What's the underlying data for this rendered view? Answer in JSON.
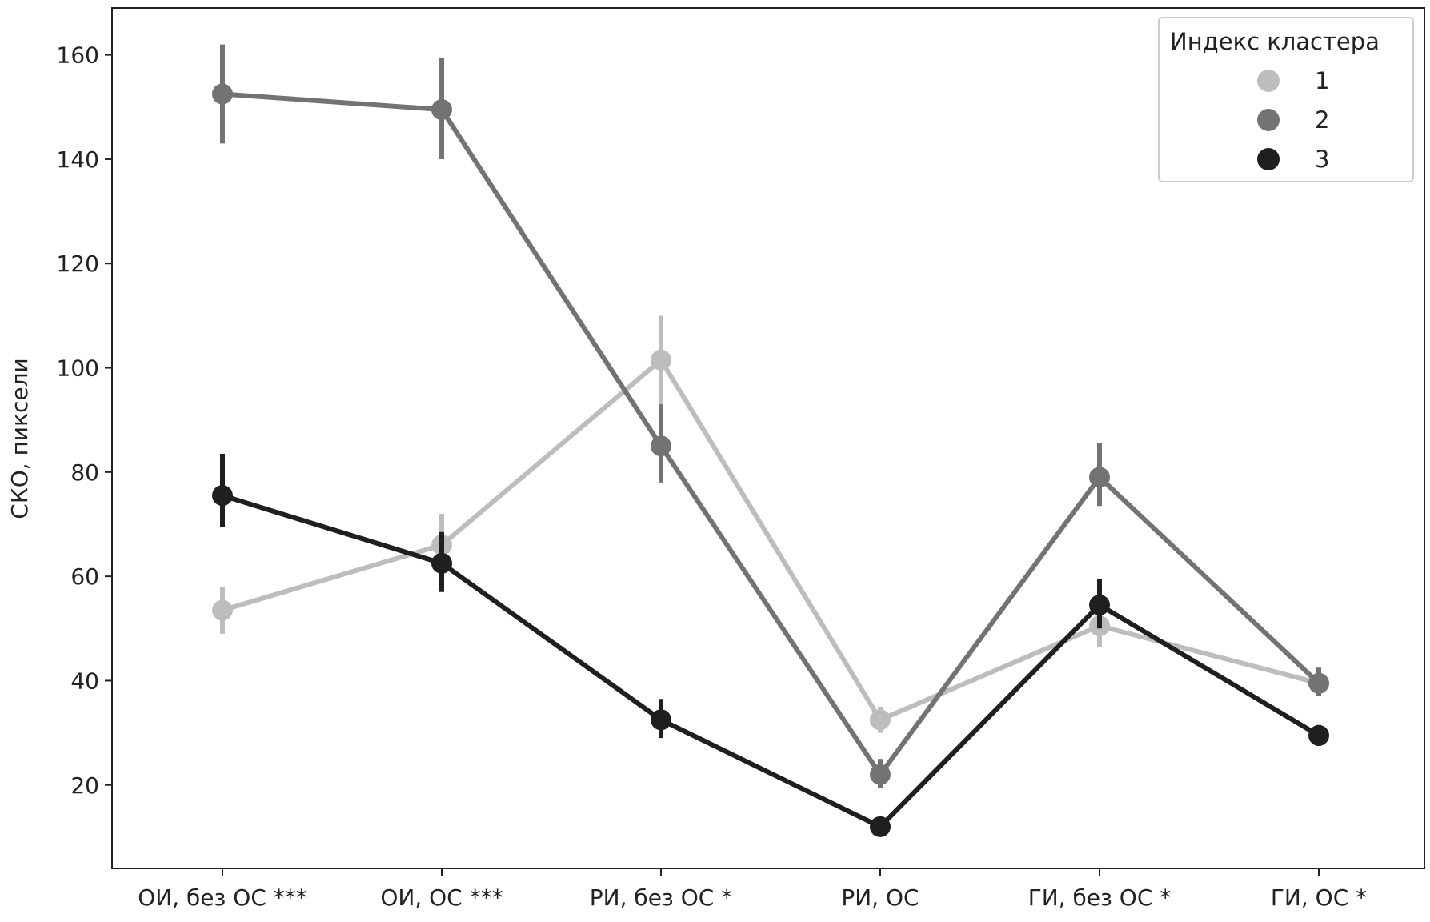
{
  "chart_data": {
    "type": "line",
    "title": "",
    "xlabel": "",
    "ylabel": "СКО, пиксели",
    "categories": [
      "ОИ, без ОС ***",
      "ОИ, ОС ***",
      "РИ, без ОС *",
      "РИ, ОС",
      "ГИ, без ОС *",
      "ГИ, ОС *"
    ],
    "ylim": [
      4,
      169
    ],
    "yticks": [
      20,
      40,
      60,
      80,
      100,
      120,
      140,
      160
    ],
    "grid": false,
    "legend": {
      "title": "Индекс кластера",
      "position": "top-right"
    },
    "series": [
      {
        "name": "1",
        "color": "#bdbdbd",
        "values": [
          53.5,
          66,
          101.5,
          32.5,
          50.5,
          39.5
        ],
        "err_low": [
          49,
          61,
          92,
          30,
          46.5,
          37
        ],
        "err_high": [
          58,
          72,
          110,
          35,
          55,
          42
        ]
      },
      {
        "name": "2",
        "color": "#737373",
        "values": [
          152.5,
          149.5,
          85,
          22,
          79,
          39.5
        ],
        "err_low": [
          143,
          140,
          78,
          19.5,
          73.5,
          37
        ],
        "err_high": [
          162,
          159.5,
          93,
          25,
          85.5,
          42.5
        ]
      },
      {
        "name": "3",
        "color": "#1f1f1f",
        "values": [
          75.5,
          62.5,
          32.5,
          12,
          54.5,
          29.5
        ],
        "err_low": [
          69.5,
          57,
          29,
          10.5,
          50,
          27.5
        ],
        "err_high": [
          83.5,
          68.5,
          36.5,
          13.5,
          59.5,
          31.5
        ]
      }
    ]
  }
}
